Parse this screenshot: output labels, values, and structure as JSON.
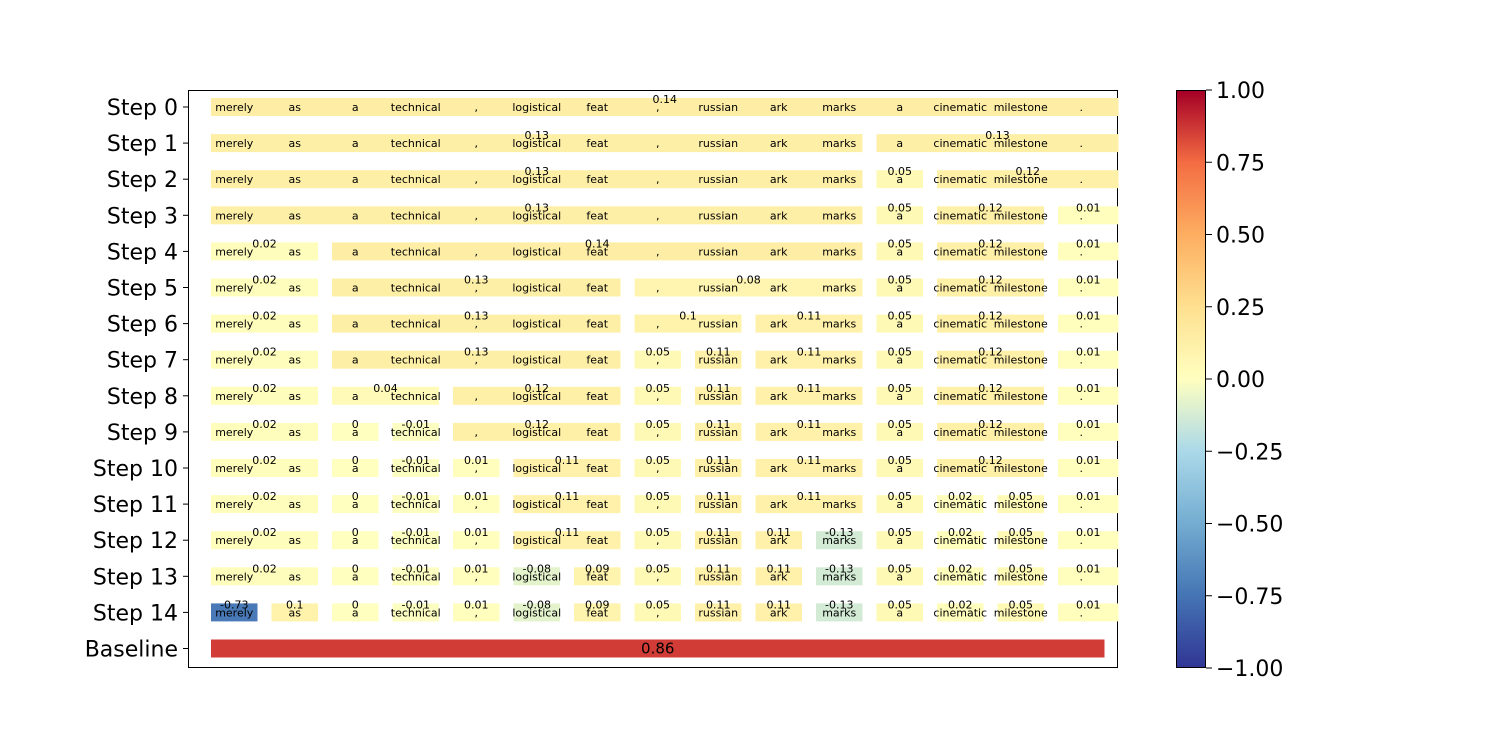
{
  "chart_data": {
    "type": "heatmap",
    "title": "",
    "xlabel": "",
    "ylabel": "",
    "tokens": [
      "merely",
      "as",
      "a",
      "technical",
      ",",
      "logistical",
      "feat",
      ",",
      "russian",
      "ark",
      "marks",
      "a",
      "cinematic",
      "milestone",
      "."
    ],
    "rows": [
      {
        "label": "Step 0",
        "spans": [
          {
            "start": 0,
            "end": 14,
            "value": 0.14
          }
        ]
      },
      {
        "label": "Step 1",
        "spans": [
          {
            "start": 0,
            "end": 10,
            "value": 0.13
          },
          {
            "start": 11,
            "end": 14,
            "value": 0.13
          }
        ]
      },
      {
        "label": "Step 2",
        "spans": [
          {
            "start": 0,
            "end": 10,
            "value": 0.13
          },
          {
            "start": 11,
            "end": 11,
            "value": 0.05
          },
          {
            "start": 12,
            "end": 14,
            "value": 0.12
          }
        ]
      },
      {
        "label": "Step 3",
        "spans": [
          {
            "start": 0,
            "end": 10,
            "value": 0.13
          },
          {
            "start": 11,
            "end": 11,
            "value": 0.05
          },
          {
            "start": 12,
            "end": 13,
            "value": 0.12
          },
          {
            "start": 14,
            "end": 14,
            "value": 0.01
          }
        ]
      },
      {
        "label": "Step 4",
        "spans": [
          {
            "start": 0,
            "end": 1,
            "value": 0.02
          },
          {
            "start": 2,
            "end": 10,
            "value": 0.14
          },
          {
            "start": 11,
            "end": 11,
            "value": 0.05
          },
          {
            "start": 12,
            "end": 13,
            "value": 0.12
          },
          {
            "start": 14,
            "end": 14,
            "value": 0.01
          }
        ]
      },
      {
        "label": "Step 5",
        "spans": [
          {
            "start": 0,
            "end": 1,
            "value": 0.02
          },
          {
            "start": 2,
            "end": 6,
            "value": 0.13
          },
          {
            "start": 7,
            "end": 10,
            "value": 0.08
          },
          {
            "start": 11,
            "end": 11,
            "value": 0.05
          },
          {
            "start": 12,
            "end": 13,
            "value": 0.12
          },
          {
            "start": 14,
            "end": 14,
            "value": 0.01
          }
        ]
      },
      {
        "label": "Step 6",
        "spans": [
          {
            "start": 0,
            "end": 1,
            "value": 0.02
          },
          {
            "start": 2,
            "end": 6,
            "value": 0.13
          },
          {
            "start": 7,
            "end": 8,
            "value": 0.1
          },
          {
            "start": 9,
            "end": 10,
            "value": 0.11
          },
          {
            "start": 11,
            "end": 11,
            "value": 0.05
          },
          {
            "start": 12,
            "end": 13,
            "value": 0.12
          },
          {
            "start": 14,
            "end": 14,
            "value": 0.01
          }
        ]
      },
      {
        "label": "Step 7",
        "spans": [
          {
            "start": 0,
            "end": 1,
            "value": 0.02
          },
          {
            "start": 2,
            "end": 6,
            "value": 0.13
          },
          {
            "start": 7,
            "end": 7,
            "value": 0.05
          },
          {
            "start": 8,
            "end": 8,
            "value": 0.11
          },
          {
            "start": 9,
            "end": 10,
            "value": 0.11
          },
          {
            "start": 11,
            "end": 11,
            "value": 0.05
          },
          {
            "start": 12,
            "end": 13,
            "value": 0.12
          },
          {
            "start": 14,
            "end": 14,
            "value": 0.01
          }
        ]
      },
      {
        "label": "Step 8",
        "spans": [
          {
            "start": 0,
            "end": 1,
            "value": 0.02
          },
          {
            "start": 2,
            "end": 3,
            "value": 0.04
          },
          {
            "start": 4,
            "end": 6,
            "value": 0.12
          },
          {
            "start": 7,
            "end": 7,
            "value": 0.05
          },
          {
            "start": 8,
            "end": 8,
            "value": 0.11
          },
          {
            "start": 9,
            "end": 10,
            "value": 0.11
          },
          {
            "start": 11,
            "end": 11,
            "value": 0.05
          },
          {
            "start": 12,
            "end": 13,
            "value": 0.12
          },
          {
            "start": 14,
            "end": 14,
            "value": 0.01
          }
        ]
      },
      {
        "label": "Step 9",
        "spans": [
          {
            "start": 0,
            "end": 1,
            "value": 0.02
          },
          {
            "start": 2,
            "end": 2,
            "value": 0.0
          },
          {
            "start": 3,
            "end": 3,
            "value": -0.01
          },
          {
            "start": 4,
            "end": 6,
            "value": 0.12
          },
          {
            "start": 7,
            "end": 7,
            "value": 0.05
          },
          {
            "start": 8,
            "end": 8,
            "value": 0.11
          },
          {
            "start": 9,
            "end": 10,
            "value": 0.11
          },
          {
            "start": 11,
            "end": 11,
            "value": 0.05
          },
          {
            "start": 12,
            "end": 13,
            "value": 0.12
          },
          {
            "start": 14,
            "end": 14,
            "value": 0.01
          }
        ]
      },
      {
        "label": "Step 10",
        "spans": [
          {
            "start": 0,
            "end": 1,
            "value": 0.02
          },
          {
            "start": 2,
            "end": 2,
            "value": 0.0
          },
          {
            "start": 3,
            "end": 3,
            "value": -0.01
          },
          {
            "start": 4,
            "end": 4,
            "value": 0.01
          },
          {
            "start": 5,
            "end": 6,
            "value": 0.11
          },
          {
            "start": 7,
            "end": 7,
            "value": 0.05
          },
          {
            "start": 8,
            "end": 8,
            "value": 0.11
          },
          {
            "start": 9,
            "end": 10,
            "value": 0.11
          },
          {
            "start": 11,
            "end": 11,
            "value": 0.05
          },
          {
            "start": 12,
            "end": 13,
            "value": 0.12
          },
          {
            "start": 14,
            "end": 14,
            "value": 0.01
          }
        ]
      },
      {
        "label": "Step 11",
        "spans": [
          {
            "start": 0,
            "end": 1,
            "value": 0.02
          },
          {
            "start": 2,
            "end": 2,
            "value": 0.0
          },
          {
            "start": 3,
            "end": 3,
            "value": -0.01
          },
          {
            "start": 4,
            "end": 4,
            "value": 0.01
          },
          {
            "start": 5,
            "end": 6,
            "value": 0.11
          },
          {
            "start": 7,
            "end": 7,
            "value": 0.05
          },
          {
            "start": 8,
            "end": 8,
            "value": 0.11
          },
          {
            "start": 9,
            "end": 10,
            "value": 0.11
          },
          {
            "start": 11,
            "end": 11,
            "value": 0.05
          },
          {
            "start": 12,
            "end": 12,
            "value": 0.02
          },
          {
            "start": 13,
            "end": 13,
            "value": 0.05
          },
          {
            "start": 14,
            "end": 14,
            "value": 0.01
          }
        ]
      },
      {
        "label": "Step 12",
        "spans": [
          {
            "start": 0,
            "end": 1,
            "value": 0.02
          },
          {
            "start": 2,
            "end": 2,
            "value": 0.0
          },
          {
            "start": 3,
            "end": 3,
            "value": -0.01
          },
          {
            "start": 4,
            "end": 4,
            "value": 0.01
          },
          {
            "start": 5,
            "end": 6,
            "value": 0.11
          },
          {
            "start": 7,
            "end": 7,
            "value": 0.05
          },
          {
            "start": 8,
            "end": 8,
            "value": 0.11
          },
          {
            "start": 9,
            "end": 9,
            "value": 0.11
          },
          {
            "start": 10,
            "end": 10,
            "value": -0.13
          },
          {
            "start": 11,
            "end": 11,
            "value": 0.05
          },
          {
            "start": 12,
            "end": 12,
            "value": 0.02
          },
          {
            "start": 13,
            "end": 13,
            "value": 0.05
          },
          {
            "start": 14,
            "end": 14,
            "value": 0.01
          }
        ]
      },
      {
        "label": "Step 13",
        "spans": [
          {
            "start": 0,
            "end": 1,
            "value": 0.02
          },
          {
            "start": 2,
            "end": 2,
            "value": 0.0
          },
          {
            "start": 3,
            "end": 3,
            "value": -0.01
          },
          {
            "start": 4,
            "end": 4,
            "value": 0.01
          },
          {
            "start": 5,
            "end": 5,
            "value": -0.08
          },
          {
            "start": 6,
            "end": 6,
            "value": 0.09
          },
          {
            "start": 7,
            "end": 7,
            "value": 0.05
          },
          {
            "start": 8,
            "end": 8,
            "value": 0.11
          },
          {
            "start": 9,
            "end": 9,
            "value": 0.11
          },
          {
            "start": 10,
            "end": 10,
            "value": -0.13
          },
          {
            "start": 11,
            "end": 11,
            "value": 0.05
          },
          {
            "start": 12,
            "end": 12,
            "value": 0.02
          },
          {
            "start": 13,
            "end": 13,
            "value": 0.05
          },
          {
            "start": 14,
            "end": 14,
            "value": 0.01
          }
        ]
      },
      {
        "label": "Step 14",
        "spans": [
          {
            "start": 0,
            "end": 0,
            "value": -0.73
          },
          {
            "start": 1,
            "end": 1,
            "value": 0.1
          },
          {
            "start": 2,
            "end": 2,
            "value": 0.0
          },
          {
            "start": 3,
            "end": 3,
            "value": -0.01
          },
          {
            "start": 4,
            "end": 4,
            "value": 0.01
          },
          {
            "start": 5,
            "end": 5,
            "value": -0.08
          },
          {
            "start": 6,
            "end": 6,
            "value": 0.09
          },
          {
            "start": 7,
            "end": 7,
            "value": 0.05
          },
          {
            "start": 8,
            "end": 8,
            "value": 0.11
          },
          {
            "start": 9,
            "end": 9,
            "value": 0.11
          },
          {
            "start": 10,
            "end": 10,
            "value": -0.13
          },
          {
            "start": 11,
            "end": 11,
            "value": 0.05
          },
          {
            "start": 12,
            "end": 12,
            "value": 0.02
          },
          {
            "start": 13,
            "end": 13,
            "value": 0.05
          },
          {
            "start": 14,
            "end": 14,
            "value": 0.01
          }
        ]
      }
    ],
    "baseline": {
      "label": "Baseline",
      "value": 0.86
    },
    "colorbar": {
      "colormap": "RdYlBu_r",
      "range": [
        -1.0,
        1.0
      ],
      "tick_labels": [
        "1.00",
        "0.75",
        "0.50",
        "0.25",
        "0.00",
        "−0.25",
        "−0.50",
        "−0.75",
        "−1.00"
      ],
      "stops": [
        "#313695",
        "#4575b4",
        "#74add1",
        "#abd9e9",
        "#ffffbf",
        "#fee090",
        "#fdae61",
        "#f46d43",
        "#a50026"
      ]
    }
  }
}
